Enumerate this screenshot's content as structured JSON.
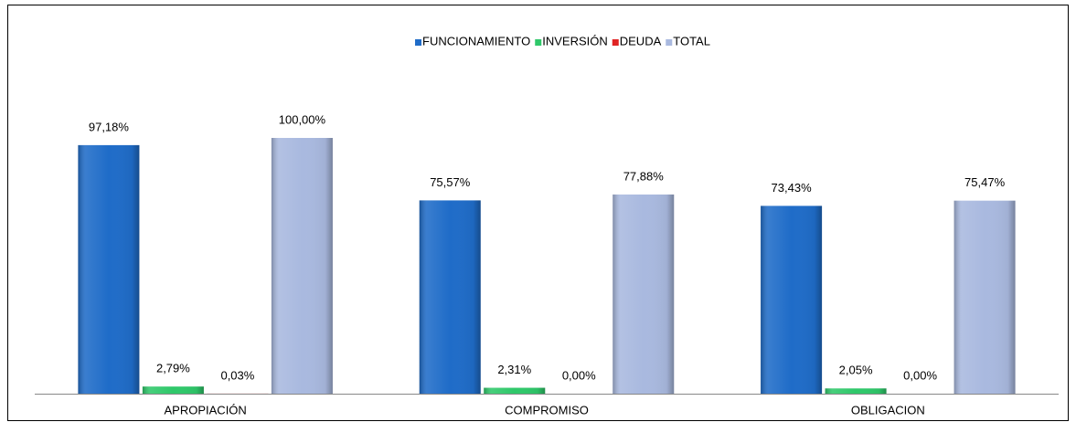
{
  "chart_data": {
    "type": "bar",
    "categories": [
      "APROPIACIÓN",
      "COMPROMISO",
      "OBLIGACION"
    ],
    "series": [
      {
        "name": "FUNCIONAMIENTO",
        "color": "#1f6cc8",
        "values": [
          97.18,
          75.57,
          73.43
        ],
        "value_labels": [
          "97,18%",
          "75,57%",
          "73,43%"
        ]
      },
      {
        "name": "INVERSIÓN",
        "color": "#2fc86a",
        "values": [
          2.79,
          2.31,
          2.05
        ],
        "value_labels": [
          "2,79%",
          "2,31%",
          "2,05%"
        ]
      },
      {
        "name": "DEUDA",
        "color": "#e02424",
        "values": [
          0.03,
          0.0,
          0.0
        ],
        "value_labels": [
          "0,03%",
          "0,00%",
          "0,00%"
        ]
      },
      {
        "name": "TOTAL",
        "color": "#a9b9df",
        "values": [
          100.0,
          77.88,
          75.47
        ],
        "value_labels": [
          "100,00%",
          "77,88%",
          "75,47%"
        ]
      }
    ],
    "legend": "top"
  }
}
